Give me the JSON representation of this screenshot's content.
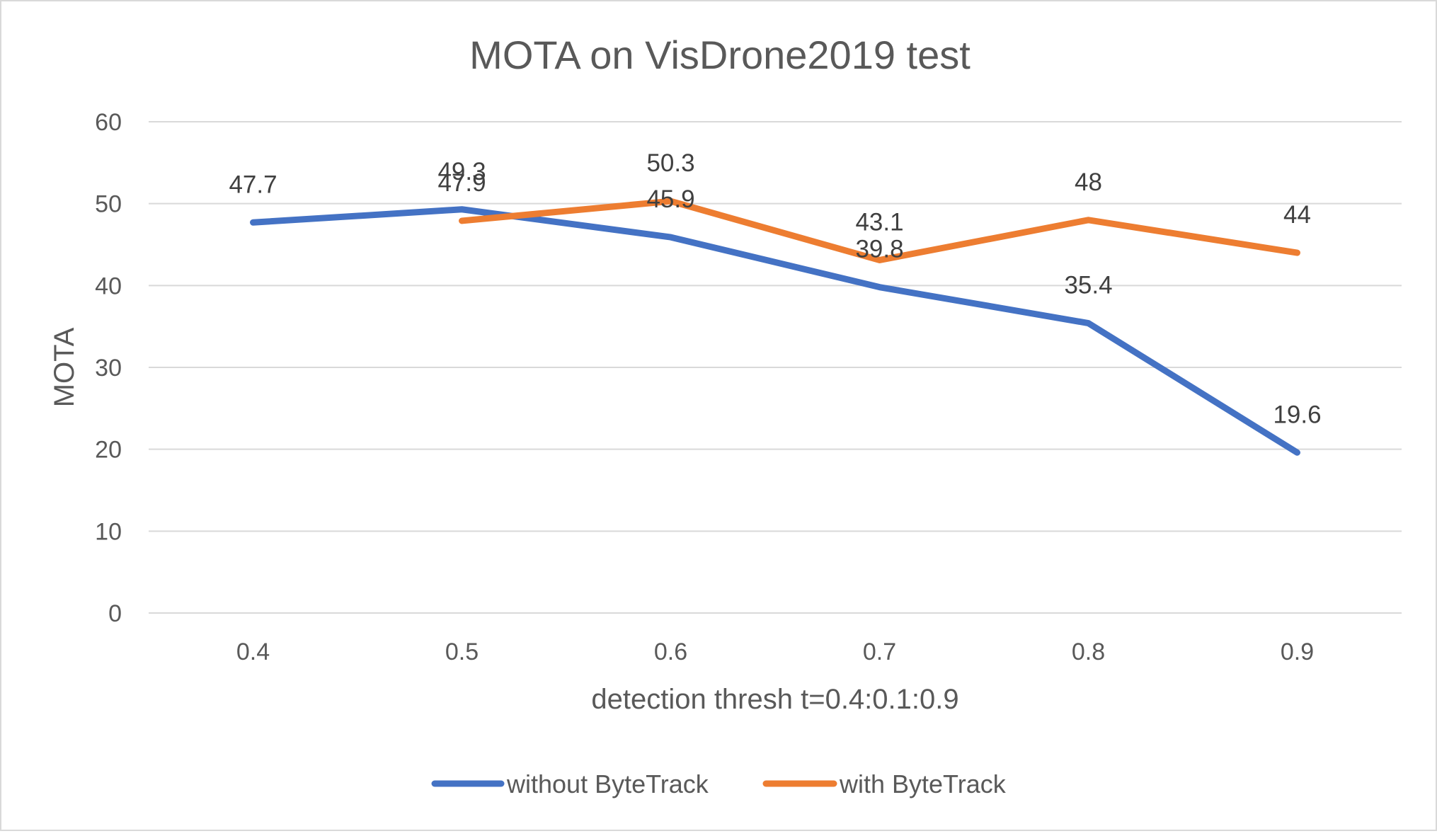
{
  "chart_data": {
    "type": "line",
    "title": "MOTA on VisDrone2019 test",
    "xlabel": "detection thresh t=0.4:0.1:0.9",
    "ylabel": "MOTA",
    "categories": [
      "0.4",
      "0.5",
      "0.6",
      "0.7",
      "0.8",
      "0.9"
    ],
    "y_ticks": [
      "0",
      "10",
      "20",
      "30",
      "40",
      "50",
      "60"
    ],
    "ylim": [
      0,
      60
    ],
    "grid": true,
    "legend_position": "bottom",
    "series": [
      {
        "name": "without ByteTrack",
        "color": "#4472c4",
        "values": [
          47.7,
          49.3,
          45.9,
          39.8,
          35.4,
          19.6
        ],
        "labels": [
          "47.7",
          "49.3",
          "45.9",
          "39.8",
          "35.4",
          "19.6"
        ]
      },
      {
        "name": "with ByteTrack",
        "color": "#ed7d31",
        "values": [
          null,
          47.9,
          50.3,
          43.1,
          48,
          44
        ],
        "labels": [
          "",
          "47.9",
          "50.3",
          "43.1",
          "48",
          "44"
        ]
      }
    ]
  }
}
